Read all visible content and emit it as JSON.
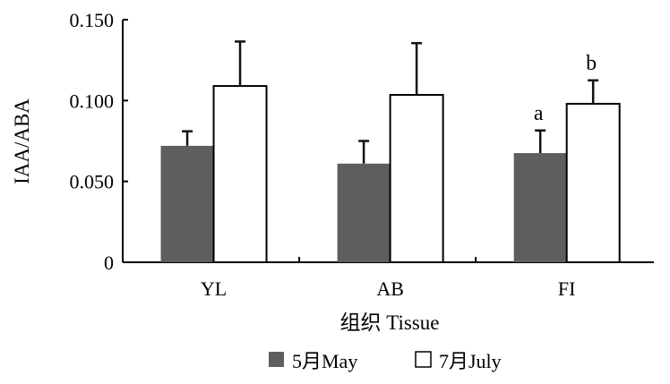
{
  "chart_data": {
    "type": "bar",
    "title": "",
    "xlabel": "组织 Tissue",
    "ylabel": "IAA/ABA",
    "ylim": [
      0,
      0.15
    ],
    "yticks": [
      "0",
      "0.050",
      "0.100",
      "0.150"
    ],
    "ytick_values": [
      0,
      0.05,
      0.1,
      0.15
    ],
    "categories": [
      "YL",
      "AB",
      "FI"
    ],
    "grid": false,
    "legend_position": "bottom",
    "series": [
      {
        "name": "5月May",
        "color": "#5e5e5e",
        "values": [
          0.072,
          0.061,
          0.0675
        ],
        "errors": [
          0.009,
          0.014,
          0.014
        ],
        "annotations": [
          "",
          "",
          "a"
        ]
      },
      {
        "name": "7月July",
        "color": "#ffffff",
        "values": [
          0.109,
          0.1035,
          0.098
        ],
        "errors": [
          0.0275,
          0.032,
          0.0145
        ],
        "annotations": [
          "",
          "",
          "b"
        ]
      }
    ]
  }
}
